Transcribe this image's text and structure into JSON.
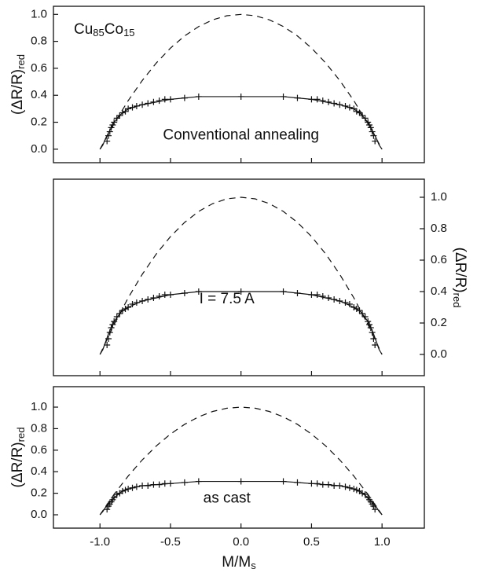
{
  "chart_data": [
    {
      "type": "line",
      "annotation": [
        "Cu",
        "85",
        "Co",
        "15"
      ],
      "label": "Conventional annealing",
      "y_label": [
        "(ΔR/R)",
        "red"
      ],
      "y_axis_side": "left",
      "x_tick_labels": false,
      "xlim": [
        -1.33,
        1.3
      ],
      "ylim": [
        -0.1,
        1.06
      ],
      "xticks": [
        -1,
        -0.5,
        0,
        0.5,
        1
      ],
      "yticks": [
        {
          "value": 0,
          "label": "0.0"
        },
        {
          "value": 0.2,
          "label": "0.2"
        },
        {
          "value": 0.4,
          "label": "0.4"
        },
        {
          "value": 0.6,
          "label": "0.6"
        },
        {
          "value": 0.8,
          "label": "0.8"
        },
        {
          "value": 1,
          "label": "1.0"
        }
      ],
      "series": [
        {
          "style": "markers",
          "color": "#111111",
          "x": [
            -0.95,
            -0.94,
            -0.93,
            -0.92,
            -0.91,
            -0.9,
            -0.88,
            -0.86,
            -0.84,
            -0.82,
            -0.8,
            -0.77,
            -0.74,
            -0.7,
            -0.66,
            -0.62,
            -0.58,
            -0.54,
            -0.5,
            -0.4,
            -0.3,
            0,
            0.3,
            0.4,
            0.5,
            0.54,
            0.58,
            0.62,
            0.66,
            0.7,
            0.74,
            0.77,
            0.8,
            0.82,
            0.84,
            0.86,
            0.88,
            0.9,
            0.91,
            0.92,
            0.93,
            0.94,
            0.95
          ],
          "values": [
            0.06,
            0.1,
            0.13,
            0.16,
            0.18,
            0.2,
            0.23,
            0.25,
            0.27,
            0.28,
            0.3,
            0.31,
            0.32,
            0.33,
            0.34,
            0.35,
            0.36,
            0.37,
            0.37,
            0.38,
            0.39,
            0.39,
            0.39,
            0.38,
            0.37,
            0.37,
            0.36,
            0.35,
            0.34,
            0.33,
            0.32,
            0.31,
            0.3,
            0.28,
            0.27,
            0.25,
            0.23,
            0.2,
            0.18,
            0.16,
            0.13,
            0.1,
            0.06
          ]
        },
        {
          "style": "solid",
          "color": "#111111",
          "x": [
            -1,
            -0.98,
            -0.96,
            -0.94,
            -0.92,
            -0.9,
            -0.85,
            -0.8,
            -0.7,
            -0.6,
            -0.5,
            -0.3,
            0,
            0.3,
            0.5,
            0.6,
            0.7,
            0.8,
            0.85,
            0.9,
            0.92,
            0.94,
            0.96,
            0.98,
            1
          ],
          "values": [
            0,
            0.03,
            0.08,
            0.12,
            0.16,
            0.2,
            0.26,
            0.3,
            0.33,
            0.35,
            0.37,
            0.39,
            0.39,
            0.39,
            0.37,
            0.35,
            0.33,
            0.3,
            0.26,
            0.2,
            0.16,
            0.12,
            0.08,
            0.03,
            0
          ]
        },
        {
          "style": "dashed",
          "color": "#111111",
          "x": [
            -1,
            -0.9,
            -0.8,
            -0.7,
            -0.6,
            -0.5,
            -0.4,
            -0.3,
            -0.2,
            -0.1,
            0,
            0.1,
            0.2,
            0.3,
            0.4,
            0.5,
            0.6,
            0.7,
            0.8,
            0.9,
            1
          ],
          "values": [
            0,
            0.19,
            0.36,
            0.51,
            0.64,
            0.75,
            0.84,
            0.91,
            0.96,
            0.99,
            1,
            0.99,
            0.96,
            0.91,
            0.84,
            0.75,
            0.64,
            0.51,
            0.36,
            0.19,
            0
          ]
        }
      ]
    },
    {
      "type": "line",
      "label": "I = 7.5 A",
      "y_label": [
        "(ΔR/R)",
        "red"
      ],
      "y_axis_side": "right",
      "x_tick_labels": false,
      "xlim": [
        -1.33,
        1.3
      ],
      "ylim": [
        -0.135,
        1.115
      ],
      "xticks": [
        -1,
        -0.5,
        0,
        0.5,
        1
      ],
      "yticks": [
        {
          "value": 0,
          "label": "0.0"
        },
        {
          "value": 0.2,
          "label": "0.2"
        },
        {
          "value": 0.4,
          "label": "0.4"
        },
        {
          "value": 0.6,
          "label": "0.6"
        },
        {
          "value": 0.8,
          "label": "0.8"
        },
        {
          "value": 1,
          "label": "1.0"
        }
      ],
      "series": [
        {
          "style": "markers",
          "color": "#111111",
          "x": [
            -0.95,
            -0.94,
            -0.93,
            -0.92,
            -0.91,
            -0.9,
            -0.88,
            -0.86,
            -0.84,
            -0.82,
            -0.8,
            -0.77,
            -0.74,
            -0.7,
            -0.66,
            -0.62,
            -0.58,
            -0.54,
            -0.5,
            -0.4,
            -0.3,
            0,
            0.3,
            0.4,
            0.5,
            0.54,
            0.58,
            0.62,
            0.66,
            0.7,
            0.74,
            0.77,
            0.8,
            0.82,
            0.84,
            0.86,
            0.88,
            0.9,
            0.91,
            0.92,
            0.93,
            0.94,
            0.95
          ],
          "values": [
            0.06,
            0.1,
            0.14,
            0.17,
            0.19,
            0.21,
            0.24,
            0.26,
            0.28,
            0.29,
            0.3,
            0.32,
            0.33,
            0.34,
            0.35,
            0.36,
            0.37,
            0.38,
            0.38,
            0.39,
            0.4,
            0.4,
            0.4,
            0.39,
            0.38,
            0.38,
            0.37,
            0.36,
            0.35,
            0.34,
            0.33,
            0.32,
            0.3,
            0.29,
            0.28,
            0.26,
            0.24,
            0.21,
            0.19,
            0.17,
            0.14,
            0.1,
            0.06
          ]
        },
        {
          "style": "solid",
          "color": "#111111",
          "x": [
            -1,
            -0.98,
            -0.96,
            -0.94,
            -0.92,
            -0.9,
            -0.85,
            -0.8,
            -0.7,
            -0.6,
            -0.5,
            -0.3,
            0,
            0.3,
            0.5,
            0.6,
            0.7,
            0.8,
            0.85,
            0.9,
            0.92,
            0.94,
            0.96,
            0.98,
            1
          ],
          "values": [
            0,
            0.03,
            0.08,
            0.13,
            0.17,
            0.21,
            0.27,
            0.3,
            0.34,
            0.36,
            0.38,
            0.4,
            0.4,
            0.4,
            0.38,
            0.36,
            0.34,
            0.3,
            0.27,
            0.21,
            0.17,
            0.13,
            0.08,
            0.03,
            0
          ]
        },
        {
          "style": "dashed",
          "color": "#111111",
          "x": [
            -1,
            -0.9,
            -0.8,
            -0.7,
            -0.6,
            -0.5,
            -0.4,
            -0.3,
            -0.2,
            -0.1,
            0,
            0.1,
            0.2,
            0.3,
            0.4,
            0.5,
            0.6,
            0.7,
            0.8,
            0.9,
            1
          ],
          "values": [
            0,
            0.19,
            0.36,
            0.51,
            0.64,
            0.75,
            0.84,
            0.91,
            0.96,
            0.99,
            1,
            0.99,
            0.96,
            0.91,
            0.84,
            0.75,
            0.64,
            0.51,
            0.36,
            0.19,
            0
          ]
        }
      ]
    },
    {
      "type": "line",
      "label": "as cast",
      "y_label": [
        "(ΔR/R)",
        "red"
      ],
      "y_axis_side": "left",
      "x_tick_labels": true,
      "x_label": [
        "M/M",
        "s"
      ],
      "xlim": [
        -1.33,
        1.3
      ],
      "ylim": [
        -0.124,
        1.19
      ],
      "xticks": [
        {
          "value": -1,
          "label": "-1.0"
        },
        {
          "value": -0.5,
          "label": "-0.5"
        },
        {
          "value": 0,
          "label": "0.0"
        },
        {
          "value": 0.5,
          "label": "0.5"
        },
        {
          "value": 1,
          "label": "1.0"
        }
      ],
      "yticks": [
        {
          "value": 0,
          "label": "0.0"
        },
        {
          "value": 0.2,
          "label": "0.2"
        },
        {
          "value": 0.4,
          "label": "0.4"
        },
        {
          "value": 0.6,
          "label": "0.6"
        },
        {
          "value": 0.8,
          "label": "0.8"
        },
        {
          "value": 1,
          "label": "1.0"
        }
      ],
      "series": [
        {
          "style": "markers",
          "color": "#111111",
          "x": [
            -0.95,
            -0.94,
            -0.93,
            -0.92,
            -0.91,
            -0.9,
            -0.88,
            -0.86,
            -0.84,
            -0.82,
            -0.8,
            -0.77,
            -0.74,
            -0.7,
            -0.66,
            -0.62,
            -0.58,
            -0.54,
            -0.5,
            -0.4,
            -0.3,
            0,
            0.3,
            0.4,
            0.5,
            0.54,
            0.58,
            0.62,
            0.66,
            0.7,
            0.74,
            0.77,
            0.8,
            0.82,
            0.84,
            0.86,
            0.88,
            0.9,
            0.91,
            0.92,
            0.93,
            0.94,
            0.95
          ],
          "values": [
            0.05,
            0.08,
            0.1,
            0.12,
            0.14,
            0.16,
            0.19,
            0.2,
            0.22,
            0.23,
            0.24,
            0.25,
            0.26,
            0.27,
            0.27,
            0.28,
            0.28,
            0.29,
            0.29,
            0.3,
            0.31,
            0.31,
            0.31,
            0.3,
            0.29,
            0.29,
            0.28,
            0.28,
            0.27,
            0.27,
            0.26,
            0.25,
            0.24,
            0.23,
            0.22,
            0.2,
            0.19,
            0.16,
            0.14,
            0.12,
            0.1,
            0.08,
            0.05
          ]
        },
        {
          "style": "solid",
          "color": "#111111",
          "x": [
            -1,
            -0.98,
            -0.96,
            -0.94,
            -0.92,
            -0.9,
            -0.85,
            -0.8,
            -0.7,
            -0.6,
            -0.5,
            -0.3,
            0,
            0.3,
            0.5,
            0.6,
            0.7,
            0.8,
            0.85,
            0.9,
            0.92,
            0.94,
            0.96,
            0.98,
            1
          ],
          "values": [
            0,
            0.03,
            0.07,
            0.1,
            0.13,
            0.16,
            0.21,
            0.24,
            0.27,
            0.28,
            0.29,
            0.31,
            0.31,
            0.31,
            0.29,
            0.28,
            0.27,
            0.24,
            0.21,
            0.16,
            0.13,
            0.1,
            0.07,
            0.03,
            0
          ]
        },
        {
          "style": "dashed",
          "color": "#111111",
          "x": [
            -1,
            -0.9,
            -0.8,
            -0.7,
            -0.6,
            -0.5,
            -0.4,
            -0.3,
            -0.2,
            -0.1,
            0,
            0.1,
            0.2,
            0.3,
            0.4,
            0.5,
            0.6,
            0.7,
            0.8,
            0.9,
            1
          ],
          "values": [
            0,
            0.19,
            0.36,
            0.51,
            0.64,
            0.75,
            0.84,
            0.91,
            0.96,
            0.99,
            1,
            0.99,
            0.96,
            0.91,
            0.84,
            0.75,
            0.64,
            0.51,
            0.36,
            0.19,
            0
          ]
        }
      ]
    }
  ]
}
